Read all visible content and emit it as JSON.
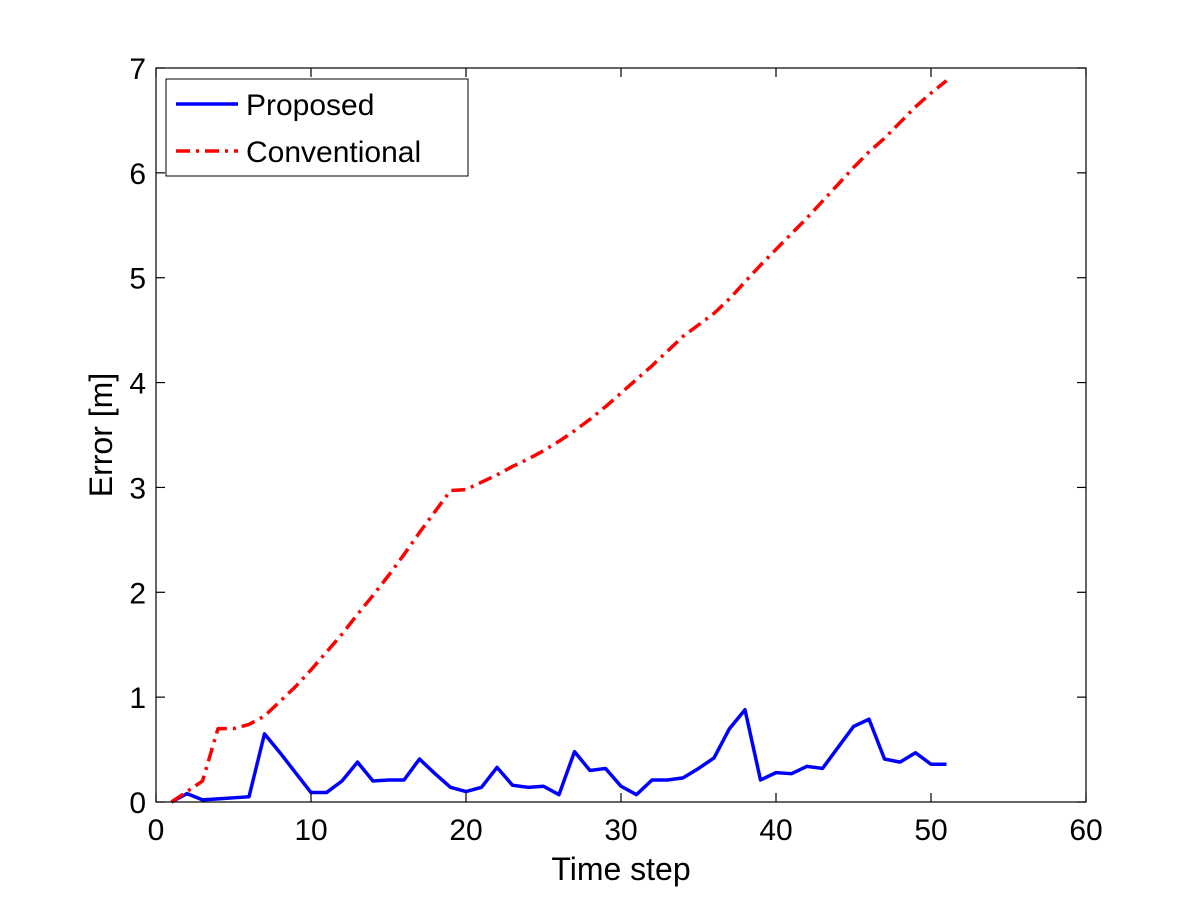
{
  "chart_data": {
    "type": "line",
    "title": "",
    "xlabel": "Time step",
    "ylabel": "Error [m]",
    "xlim": [
      0,
      60
    ],
    "ylim": [
      0,
      7
    ],
    "xticks": [
      0,
      10,
      20,
      30,
      40,
      50,
      60
    ],
    "yticks": [
      0,
      1,
      2,
      3,
      4,
      5,
      6,
      7
    ],
    "grid": false,
    "legend_position": "top-left",
    "series": [
      {
        "name": "Proposed",
        "color": "#0000ff",
        "style": "solid",
        "x": [
          1,
          2,
          3,
          4,
          5,
          6,
          7,
          8,
          9,
          10,
          11,
          12,
          13,
          14,
          15,
          16,
          17,
          18,
          19,
          20,
          21,
          22,
          23,
          24,
          25,
          26,
          27,
          28,
          29,
          30,
          31,
          32,
          33,
          34,
          35,
          36,
          37,
          38,
          39,
          40,
          41,
          42,
          43,
          44,
          45,
          46,
          47,
          48,
          49,
          50,
          51
        ],
        "y": [
          0.0,
          0.08,
          0.02,
          0.03,
          0.04,
          0.05,
          0.65,
          0.47,
          0.28,
          0.09,
          0.09,
          0.2,
          0.38,
          0.2,
          0.21,
          0.21,
          0.41,
          0.27,
          0.14,
          0.1,
          0.14,
          0.33,
          0.16,
          0.14,
          0.15,
          0.07,
          0.48,
          0.3,
          0.32,
          0.15,
          0.07,
          0.21,
          0.21,
          0.23,
          0.32,
          0.42,
          0.7,
          0.88,
          0.21,
          0.28,
          0.27,
          0.34,
          0.32,
          0.52,
          0.72,
          0.79,
          0.41,
          0.38,
          0.47,
          0.36,
          0.36
        ]
      },
      {
        "name": "Conventional",
        "color": "#ff0000",
        "style": "dash-dot",
        "x": [
          1,
          2,
          3,
          4,
          5,
          6,
          7,
          8,
          9,
          10,
          11,
          12,
          13,
          14,
          15,
          16,
          17,
          18,
          19,
          20,
          21,
          22,
          23,
          24,
          25,
          26,
          27,
          28,
          29,
          30,
          31,
          32,
          33,
          34,
          35,
          36,
          37,
          38,
          39,
          40,
          41,
          42,
          43,
          44,
          45,
          46,
          47,
          48,
          49,
          50,
          51
        ],
        "y": [
          0.0,
          0.1,
          0.2,
          0.7,
          0.7,
          0.74,
          0.82,
          0.96,
          1.1,
          1.26,
          1.43,
          1.6,
          1.79,
          1.97,
          2.16,
          2.36,
          2.57,
          2.77,
          2.97,
          2.98,
          3.05,
          3.12,
          3.2,
          3.27,
          3.35,
          3.44,
          3.54,
          3.65,
          3.77,
          3.9,
          4.03,
          4.16,
          4.3,
          4.44,
          4.55,
          4.66,
          4.8,
          4.96,
          5.12,
          5.27,
          5.42,
          5.57,
          5.73,
          5.89,
          6.05,
          6.2,
          6.33,
          6.48,
          6.63,
          6.76,
          6.88
        ]
      }
    ]
  }
}
